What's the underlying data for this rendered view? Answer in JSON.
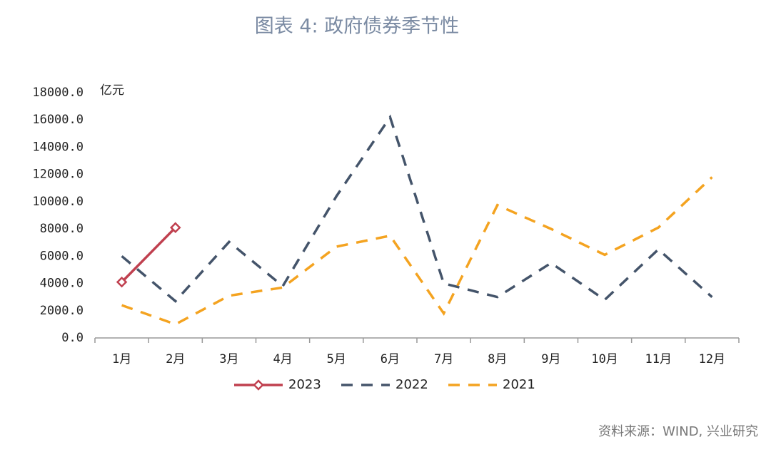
{
  "chart_data": {
    "type": "line",
    "title": "图表 4:  政府债券季节性",
    "y_unit": "亿元",
    "source": "资料来源：WIND, 兴业研究",
    "categories": [
      "1月",
      "2月",
      "3月",
      "4月",
      "5月",
      "6月",
      "7月",
      "8月",
      "9月",
      "10月",
      "11月",
      "12月"
    ],
    "series": [
      {
        "name": "2023",
        "color": "#c0404f",
        "dash": "solid",
        "marker": "diamond",
        "values": [
          4100,
          8100,
          null,
          null,
          null,
          null,
          null,
          null,
          null,
          null,
          null,
          null
        ]
      },
      {
        "name": "2022",
        "color": "#44546a",
        "dash": "dashed",
        "values": [
          6000,
          2700,
          7050,
          3800,
          10400,
          16200,
          4000,
          3000,
          5500,
          2800,
          6500,
          3000
        ]
      },
      {
        "name": "2021",
        "color": "#f4a320",
        "dash": "dashed",
        "values": [
          2400,
          1000,
          3100,
          3700,
          6700,
          7500,
          1800,
          9750,
          8000,
          6100,
          8100,
          11800
        ]
      }
    ],
    "ylim": [
      0,
      18000
    ],
    "yticks": [
      {
        "value": 0,
        "label": "0.0"
      },
      {
        "value": 2000,
        "label": "2000.0"
      },
      {
        "value": 4000,
        "label": "4000.0"
      },
      {
        "value": 6000,
        "label": "6000.0"
      },
      {
        "value": 8000,
        "label": "8000.0"
      },
      {
        "value": 10000,
        "label": "10000.0"
      },
      {
        "value": 12000,
        "label": "12000.0"
      },
      {
        "value": 14000,
        "label": "14000.0"
      },
      {
        "value": 16000,
        "label": "16000.0"
      },
      {
        "value": 18000,
        "label": "18000.0"
      }
    ],
    "legend": "bottom"
  }
}
